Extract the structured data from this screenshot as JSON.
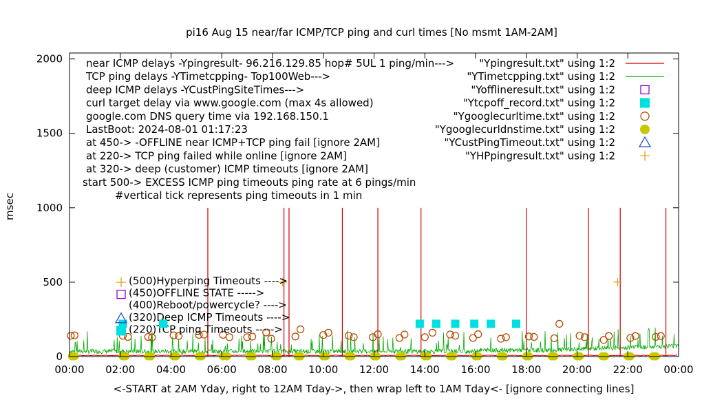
{
  "chart_data": {
    "type": "line",
    "title": "pi16 Aug 15  near/far ICMP/TCP ping and curl times [No msmt 1AM-2AM]",
    "xlabel": "<-START at 2AM Yday, right to 12AM Tday->, then wrap left to 1AM Tday<- [ignore connecting lines]",
    "ylabel": "msec",
    "xlim": [
      0,
      24
    ],
    "ylim": [
      0,
      2040
    ],
    "x_ticks": [
      "00:00",
      "02:00",
      "04:00",
      "06:00",
      "08:00",
      "10:00",
      "12:00",
      "14:00",
      "16:00",
      "18:00",
      "20:00",
      "22:00",
      "00:00"
    ],
    "y_ticks": [
      "0",
      "500",
      "1000",
      "1500",
      "2000"
    ],
    "notes": [
      "near ICMP delays -Ypingresult- 96.216.129.85 hop# 5UL 1 ping/min--->",
      "TCP ping delays -YTimetcpping- Top100Web--->",
      "deep ICMP delays -YCustPingSiteTimes--->",
      "curl target delay via www.google.com (max 4s allowed)",
      "google.com DNS query time via 192.168.150.1",
      "LastBoot: 2024-08-01 01:17:23",
      "at 450-> -OFFLINE near ICMP+TCP ping fail [ignore 2AM]",
      "at 220-> TCP ping failed while online [ignore 2AM]",
      "at 320-> deep (customer) ICMP timeouts [ignore 2AM]",
      "start 500-> EXCESS ICMP ping timeouts ping rate at 6 pings/min",
      "#vertical tick represents ping timeouts in 1 min"
    ],
    "legend": [
      {
        "label": "\"Ypingresult.txt\" using 1:2",
        "color": "#cc0000",
        "marker": "line"
      },
      {
        "label": "\"YTimetcpping.txt\" using 1:2",
        "color": "#00aa00",
        "marker": "line"
      },
      {
        "label": "\"Yofflineresult.txt\" using 1:2",
        "color": "#9400d3",
        "marker": "open-square"
      },
      {
        "label": "\"Ytcpoff_record.txt\" using 1:2",
        "color": "#00e0e0",
        "marker": "filled-square"
      },
      {
        "label": "\"Ygooglecurltime.txt\" using 1:2",
        "color": "#b84a00",
        "marker": "open-circle"
      },
      {
        "label": "\"Ygooglecurldnstime.txt\" using 1:2",
        "color": "#c8c800",
        "marker": "filled-circle"
      },
      {
        "label": "\"YCustPingTimeout.txt\" using 1:2",
        "color": "#2050c8",
        "marker": "open-triangle"
      },
      {
        "label": "\"YHPpingresult.txt\" using 1:2",
        "color": "#e0a020",
        "marker": "plus"
      }
    ],
    "key_labels": [
      {
        "text": "(500)Hyperping Timeouts ---->",
        "marker": "plus",
        "color": "#e0a020",
        "y": 500
      },
      {
        "text": "(450)OFFLINE STATE ----->",
        "marker": "open-square",
        "color": "#9400d3",
        "y": 450
      },
      {
        "text": "(400)Reboot/powercycle? ---->",
        "marker": "none",
        "color": "#000000",
        "y": 400
      },
      {
        "text": "(320)Deep ICMP Timeouts ---->",
        "marker": "open-triangle",
        "color": "#2050c8",
        "y": 320
      },
      {
        "text": "(220)TCP ping Timeouts ----->",
        "marker": "filled-square",
        "color": "#00e0e0",
        "y": 220
      }
    ],
    "ping_spikes_x": [
      5.45,
      8.45,
      8.65,
      10.75,
      12.15,
      13.85,
      18.0,
      20.45,
      21.7,
      23.5
    ],
    "ping_spikes_y": 1000,
    "tcpoff_x": [
      2.1,
      3.7,
      13.8,
      14.45,
      15.2,
      15.95,
      16.6,
      17.6
    ],
    "tcpoff_y": 220,
    "hpping_x": [
      8.4,
      21.6
    ],
    "hpping_y": 500,
    "curl_points": [
      [
        0.05,
        140
      ],
      [
        0.2,
        142
      ],
      [
        2.1,
        140
      ],
      [
        2.3,
        132
      ],
      [
        3.1,
        132
      ],
      [
        3.25,
        128
      ],
      [
        4.1,
        142
      ],
      [
        4.3,
        138
      ],
      [
        5.1,
        146
      ],
      [
        5.3,
        148
      ],
      [
        6.05,
        146
      ],
      [
        6.3,
        130
      ],
      [
        7.0,
        130
      ],
      [
        7.2,
        134
      ],
      [
        7.75,
        162
      ],
      [
        7.95,
        120
      ],
      [
        8.9,
        135
      ],
      [
        9.1,
        183
      ],
      [
        10.0,
        145
      ],
      [
        10.2,
        160
      ],
      [
        11.0,
        140
      ],
      [
        11.2,
        130
      ],
      [
        11.95,
        130
      ],
      [
        12.15,
        150
      ],
      [
        13.0,
        125
      ],
      [
        13.2,
        148
      ],
      [
        14.0,
        130
      ],
      [
        14.3,
        160
      ],
      [
        15.0,
        148
      ],
      [
        15.2,
        140
      ],
      [
        15.9,
        125
      ],
      [
        16.1,
        150
      ],
      [
        17.0,
        120
      ],
      [
        17.2,
        130
      ],
      [
        18.1,
        135
      ],
      [
        18.3,
        132
      ],
      [
        19.1,
        123
      ],
      [
        19.3,
        220
      ],
      [
        20.1,
        140
      ],
      [
        20.3,
        130
      ],
      [
        21.05,
        112
      ],
      [
        21.25,
        138
      ],
      [
        22.1,
        125
      ],
      [
        22.3,
        138
      ],
      [
        23.1,
        132
      ],
      [
        23.3,
        138
      ]
    ],
    "dns_points_x": [
      0.1,
      0.2,
      2.1,
      2.2,
      3.1,
      3.2,
      4.1,
      4.2,
      5.1,
      5.2,
      6.05,
      6.2,
      7.1,
      7.2,
      8.1,
      8.2,
      9.0,
      9.1,
      10.0,
      10.1,
      11.0,
      11.1,
      12.0,
      12.1,
      13.0,
      13.1,
      14.0,
      14.1,
      15.0,
      15.1,
      16.0,
      16.1,
      17.0,
      17.1,
      18.0,
      18.1,
      19.0,
      19.1,
      20.0,
      20.1,
      21.0,
      21.1,
      22.0,
      22.1,
      23.0,
      23.1
    ],
    "dns_y": 2
  }
}
